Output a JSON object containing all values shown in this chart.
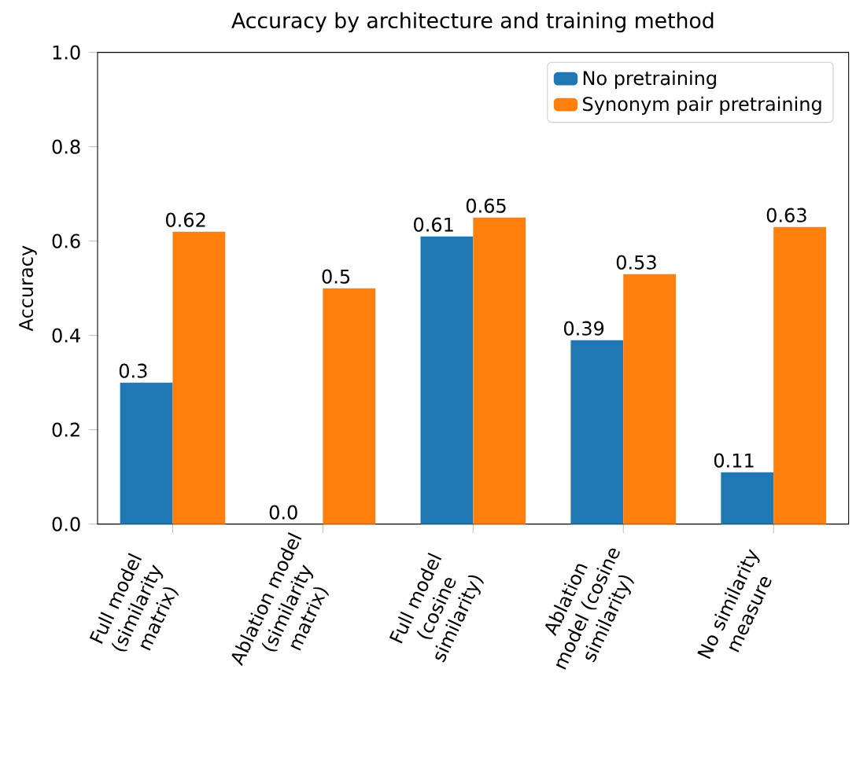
{
  "chart_data": {
    "type": "bar",
    "title": "Accuracy by architecture and training method",
    "ylabel": "Accuracy",
    "categories": [
      "Full model (similarity matrix)",
      "Ablation model (similarity matrix)",
      "Full model (cosine similarity)",
      "Ablation model (cosine similarity)",
      "No similarity measure"
    ],
    "series": [
      {
        "name": "No pretraining",
        "color": "#1f77b4",
        "values": [
          0.3,
          0.0,
          0.61,
          0.39,
          0.11
        ],
        "value_labels": [
          "0.3",
          "0.0",
          "0.61",
          "0.39",
          "0.11"
        ]
      },
      {
        "name": "Synonym pair pretraining",
        "color": "#ff7f0e",
        "values": [
          0.62,
          0.5,
          0.65,
          0.53,
          0.63
        ],
        "value_labels": [
          "0.62",
          "0.5",
          "0.65",
          "0.53",
          "0.63"
        ]
      }
    ],
    "ylim": [
      0,
      1
    ],
    "yticks": [
      {
        "value": 0,
        "label": "0.0"
      },
      {
        "value": 0.2,
        "label": "0.2"
      },
      {
        "value": 0.4,
        "label": "0.4"
      },
      {
        "value": 0.6,
        "label": "0.6"
      },
      {
        "value": 0.8,
        "label": "0.8"
      },
      {
        "value": 1,
        "label": "1.0"
      }
    ],
    "grid": false,
    "legend": "top right"
  }
}
